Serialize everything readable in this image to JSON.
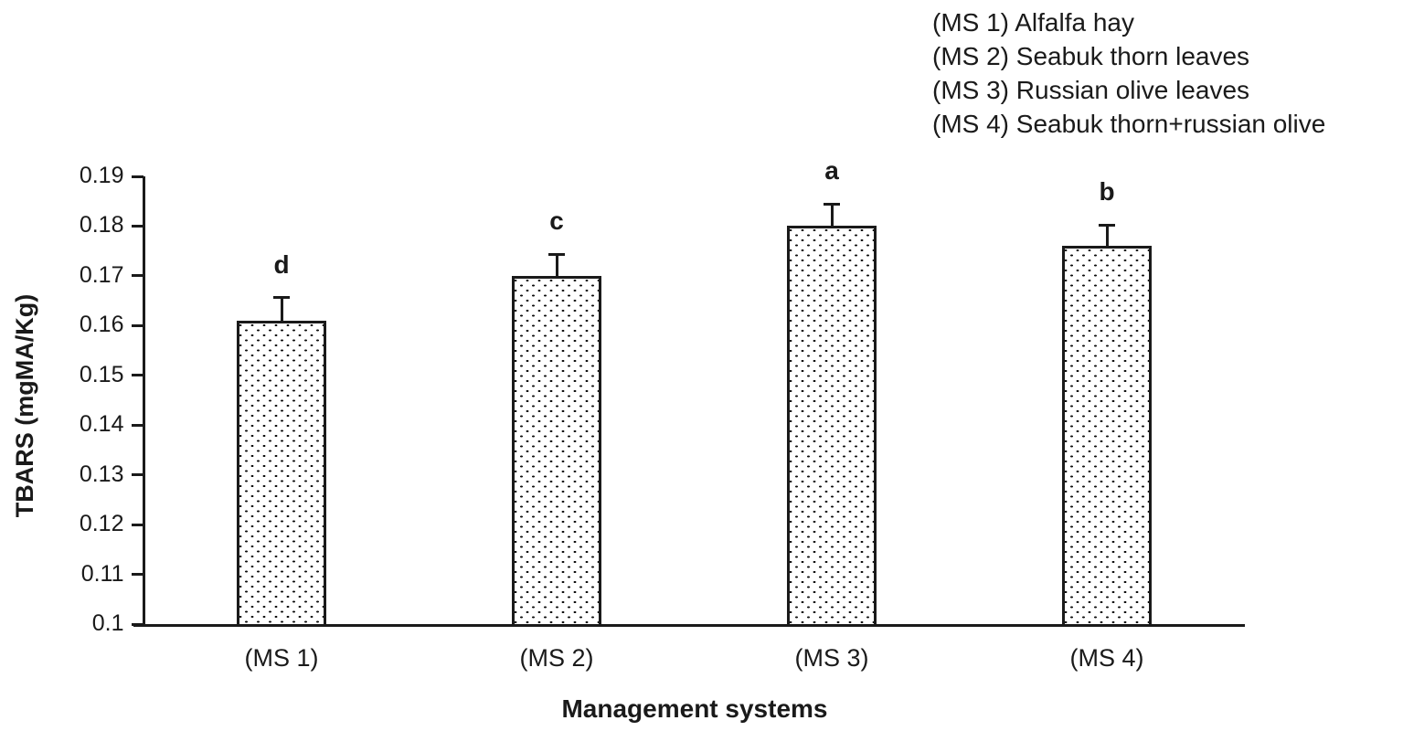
{
  "chart_data": {
    "type": "bar",
    "title": "",
    "xlabel": "Management systems",
    "ylabel": "TBARS (mgMA/Kg)",
    "categories": [
      "(MS 1)",
      "(MS 2)",
      "(MS 3)",
      "(MS 4)"
    ],
    "values": [
      0.161,
      0.17,
      0.18,
      0.176
    ],
    "errors_plus": [
      0.0046,
      0.0043,
      0.0044,
      0.0042
    ],
    "significance_letters": [
      "d",
      "c",
      "a",
      "b"
    ],
    "ylim": [
      0.1,
      0.19
    ],
    "ytick_labels": [
      "0.19",
      "0.18",
      "0.17",
      "0.16",
      "0.15",
      "0.14",
      "0.13",
      "0.12",
      "0.11",
      "0.1"
    ],
    "grid": false,
    "legend_position": "top-right",
    "bar_fill": "black-dot-pattern-on-white",
    "axis_color": "#1a1a1a",
    "background": "#ffffff"
  },
  "legend": {
    "items": [
      "(MS 1) Alfalfa hay",
      "(MS 2) Seabuk thorn leaves",
      "(MS 3) Russian olive leaves",
      "(MS 4) Seabuk thorn+russian olive"
    ]
  }
}
